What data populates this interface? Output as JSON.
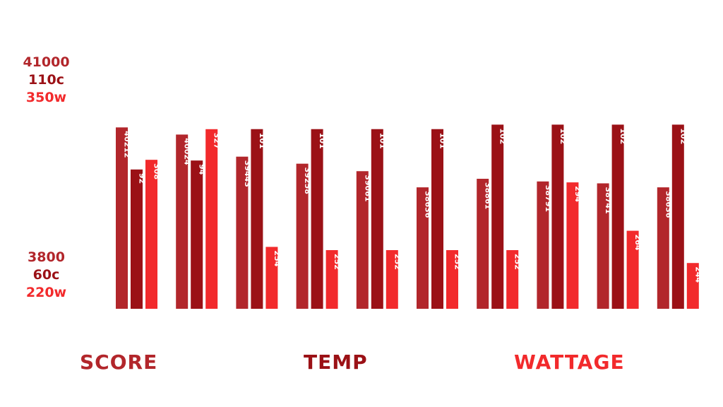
{
  "axis": {
    "score_max": "41000",
    "temp_max": "110c",
    "watt_max": "350w",
    "score_min": "3800",
    "temp_min": "60c",
    "watt_min": "220w"
  },
  "legend": {
    "score": "SCORE",
    "temp": "TEMP",
    "wattage": "WATTAGE"
  },
  "colors": {
    "score": "#b2262b",
    "temp": "#9b1116",
    "wattage": "#f22a2c"
  },
  "chart_data": {
    "type": "bar",
    "categories": [
      "",
      "",
      "",
      "",
      "",
      "",
      "",
      "",
      "",
      ""
    ],
    "series": [
      {
        "name": "SCORE",
        "values": [
          40212,
          40024,
          39443,
          39258,
          39061,
          38636,
          38861,
          38791,
          38741,
          38636
        ],
        "ylim": [
          3800,
          41000
        ]
      },
      {
        "name": "TEMP",
        "values": [
          92,
          94,
          101,
          101,
          101,
          101,
          102,
          102,
          102,
          102
        ],
        "ylim": [
          60,
          110
        ]
      },
      {
        "name": "WATTAGE",
        "values": [
          308,
          327,
          254,
          252,
          252,
          252,
          252,
          294,
          264,
          244
        ],
        "ylim": [
          220,
          350
        ]
      }
    ]
  }
}
